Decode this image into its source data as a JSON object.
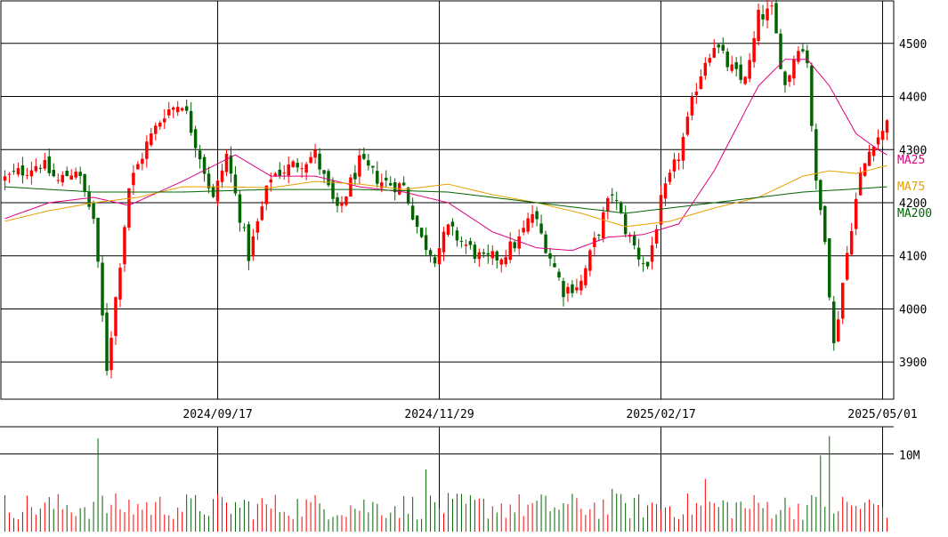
{
  "chart_data": {
    "type": "candlestick",
    "price_panel": {
      "y_ticks": [
        3900,
        4000,
        4100,
        4200,
        4300,
        4400,
        4500
      ],
      "ylim": [
        3830,
        4580
      ],
      "grid": true,
      "legend": [
        {
          "label": "MA25",
          "color": "#e0007f"
        },
        {
          "label": "MA75",
          "color": "#e8a000"
        },
        {
          "label": "MA200",
          "color": "#006400"
        }
      ],
      "up_color": "#ff0000",
      "down_color": "#006400"
    },
    "volume_panel": {
      "y_ticks": [
        {
          "value": 10000000,
          "label": "10M"
        }
      ],
      "ylim": [
        0,
        13500000
      ]
    },
    "x_ticks": [
      {
        "index": 48,
        "label": "2024/09/17"
      },
      {
        "index": 98,
        "label": "2024/11/29"
      },
      {
        "index": 148,
        "label": "2025/02/17"
      },
      {
        "index": 198,
        "label": "2025/05/01"
      }
    ],
    "anchors": [
      [
        0,
        4245
      ],
      [
        8,
        4275
      ],
      [
        12,
        4240
      ],
      [
        16,
        4265
      ],
      [
        20,
        4170
      ],
      [
        23,
        3890
      ],
      [
        25,
        4020
      ],
      [
        28,
        4230
      ],
      [
        32,
        4310
      ],
      [
        36,
        4370
      ],
      [
        40,
        4390
      ],
      [
        44,
        4290
      ],
      [
        47,
        4205
      ],
      [
        50,
        4290
      ],
      [
        55,
        4100
      ],
      [
        60,
        4250
      ],
      [
        65,
        4270
      ],
      [
        70,
        4290
      ],
      [
        75,
        4180
      ],
      [
        80,
        4275
      ],
      [
        85,
        4240
      ],
      [
        90,
        4230
      ],
      [
        94,
        4130
      ],
      [
        97,
        4100
      ],
      [
        100,
        4150
      ],
      [
        104,
        4120
      ],
      [
        108,
        4090
      ],
      [
        112,
        4100
      ],
      [
        116,
        4130
      ],
      [
        119,
        4180
      ],
      [
        122,
        4120
      ],
      [
        126,
        4035
      ],
      [
        130,
        4050
      ],
      [
        134,
        4150
      ],
      [
        137,
        4220
      ],
      [
        140,
        4150
      ],
      [
        143,
        4100
      ],
      [
        145,
        4080
      ],
      [
        148,
        4200
      ],
      [
        152,
        4290
      ],
      [
        154,
        4350
      ],
      [
        156,
        4420
      ],
      [
        158,
        4470
      ],
      [
        160,
        4500
      ],
      [
        163,
        4460
      ],
      [
        166,
        4430
      ],
      [
        168,
        4460
      ],
      [
        170,
        4550
      ],
      [
        173,
        4560
      ],
      [
        176,
        4420
      ],
      [
        179,
        4500
      ],
      [
        181,
        4470
      ],
      [
        183,
        4230
      ],
      [
        185,
        4140
      ],
      [
        187,
        3930
      ],
      [
        189,
        4050
      ],
      [
        191,
        4160
      ],
      [
        193,
        4250
      ],
      [
        196,
        4320
      ],
      [
        198,
        4330
      ],
      [
        199,
        4365
      ]
    ],
    "volume_spikes": [
      [
        21,
        12000000
      ],
      [
        186,
        12300000
      ],
      [
        184,
        9800000
      ],
      [
        95,
        8000000
      ],
      [
        158,
        6800000
      ],
      [
        137,
        5500000
      ]
    ],
    "ma_anchors": {
      "ma25": [
        [
          0,
          4170
        ],
        [
          10,
          4200
        ],
        [
          20,
          4210
        ],
        [
          28,
          4195
        ],
        [
          40,
          4240
        ],
        [
          52,
          4290
        ],
        [
          60,
          4250
        ],
        [
          70,
          4250
        ],
        [
          80,
          4230
        ],
        [
          90,
          4220
        ],
        [
          100,
          4200
        ],
        [
          110,
          4145
        ],
        [
          120,
          4115
        ],
        [
          128,
          4110
        ],
        [
          136,
          4135
        ],
        [
          144,
          4140
        ],
        [
          152,
          4160
        ],
        [
          160,
          4260
        ],
        [
          170,
          4420
        ],
        [
          176,
          4470
        ],
        [
          181,
          4470
        ],
        [
          186,
          4420
        ],
        [
          192,
          4330
        ],
        [
          197,
          4300
        ],
        [
          199,
          4290
        ]
      ],
      "ma75": [
        [
          0,
          4165
        ],
        [
          10,
          4185
        ],
        [
          20,
          4200
        ],
        [
          30,
          4210
        ],
        [
          40,
          4230
        ],
        [
          50,
          4230
        ],
        [
          60,
          4228
        ],
        [
          70,
          4240
        ],
        [
          80,
          4235
        ],
        [
          90,
          4225
        ],
        [
          100,
          4235
        ],
        [
          110,
          4215
        ],
        [
          120,
          4200
        ],
        [
          130,
          4180
        ],
        [
          140,
          4155
        ],
        [
          150,
          4165
        ],
        [
          160,
          4190
        ],
        [
          170,
          4210
        ],
        [
          180,
          4250
        ],
        [
          186,
          4260
        ],
        [
          192,
          4255
        ],
        [
          199,
          4270
        ]
      ],
      "ma200": [
        [
          0,
          4230
        ],
        [
          20,
          4220
        ],
        [
          40,
          4220
        ],
        [
          60,
          4225
        ],
        [
          80,
          4225
        ],
        [
          100,
          4220
        ],
        [
          120,
          4200
        ],
        [
          140,
          4180
        ],
        [
          160,
          4200
        ],
        [
          180,
          4220
        ],
        [
          190,
          4225
        ],
        [
          199,
          4230
        ]
      ]
    }
  }
}
